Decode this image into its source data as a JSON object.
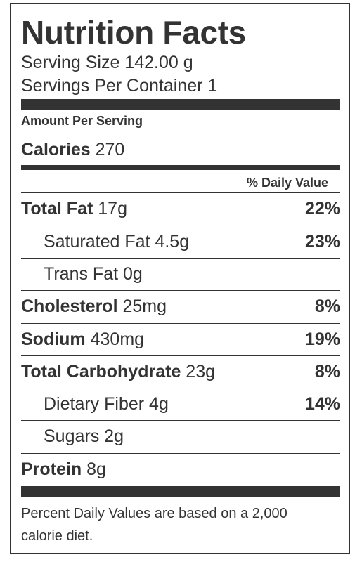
{
  "title": "Nutrition Facts",
  "serving_size": "Serving Size 142.00 g",
  "servings_per_container": "Servings Per Container 1",
  "amount_per_serving": "Amount Per Serving",
  "calories": {
    "label": "Calories",
    "value": "270"
  },
  "daily_value_header": "% Daily Value",
  "nutrients": [
    {
      "name": "Total Fat",
      "amount": "17g",
      "dv": "22%"
    },
    {
      "name": "Saturated Fat",
      "amount": "4.5g",
      "dv": "23%"
    },
    {
      "name": "Trans Fat",
      "amount": "0g",
      "dv": ""
    },
    {
      "name": "Cholesterol",
      "amount": "25mg",
      "dv": "8%"
    },
    {
      "name": "Sodium",
      "amount": "430mg",
      "dv": "19%"
    },
    {
      "name": "Total Carbohydrate",
      "amount": "23g",
      "dv": "8%"
    },
    {
      "name": "Dietary Fiber",
      "amount": "4g",
      "dv": "14%"
    },
    {
      "name": "Sugars",
      "amount": "2g",
      "dv": ""
    },
    {
      "name": "Protein",
      "amount": "8g",
      "dv": ""
    }
  ],
  "footnote": "Percent Daily Values are based on a 2,000 calorie diet.",
  "colors": {
    "text": "#333333",
    "background": "#ffffff"
  }
}
